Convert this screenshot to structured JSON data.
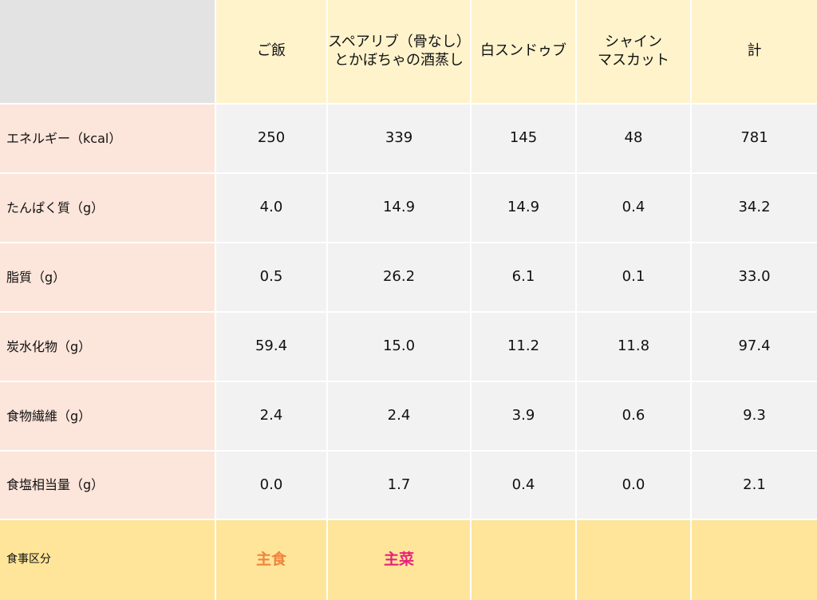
{
  "table": {
    "column_headers": [
      [
        "ご飯"
      ],
      [
        "スペアリブ（骨なし）",
        "とかぼちゃの酒蒸し"
      ],
      [
        "白スンドゥブ"
      ],
      [
        "シャイン",
        "マスカット"
      ],
      [
        "計"
      ]
    ],
    "rows": [
      {
        "label": "エネルギー（kcal）",
        "values": [
          "250",
          "339",
          "145",
          "48",
          "781"
        ]
      },
      {
        "label": "たんぱく質（g）",
        "values": [
          "4.0",
          "14.9",
          "14.9",
          "0.4",
          "34.2"
        ]
      },
      {
        "label": "脂質（g）",
        "values": [
          "0.5",
          "26.2",
          "6.1",
          "0.1",
          "33.0"
        ]
      },
      {
        "label": "炭水化物（g）",
        "values": [
          "59.4",
          "15.0",
          "11.2",
          "11.8",
          "97.4"
        ]
      },
      {
        "label": "食物繊維（g）",
        "values": [
          "2.4",
          "2.4",
          "3.9",
          "0.6",
          "9.3"
        ]
      },
      {
        "label": "食塩相当量（g）",
        "values": [
          "0.0",
          "1.7",
          "0.4",
          "0.0",
          "2.1"
        ]
      }
    ],
    "footer": {
      "label": "食事区分",
      "values": [
        {
          "text": "主食",
          "color": "#f0843c"
        },
        {
          "text": "主菜",
          "color": "#e8207a"
        },
        {
          "text": "",
          "color": ""
        },
        {
          "text": "",
          "color": ""
        },
        {
          "text": "",
          "color": ""
        }
      ]
    }
  },
  "colors": {
    "corner": "#e3e3e3",
    "header": "#fff3cc",
    "row_header": "#fce5da",
    "body": "#f2f2f2",
    "footer": "#fee59a"
  }
}
